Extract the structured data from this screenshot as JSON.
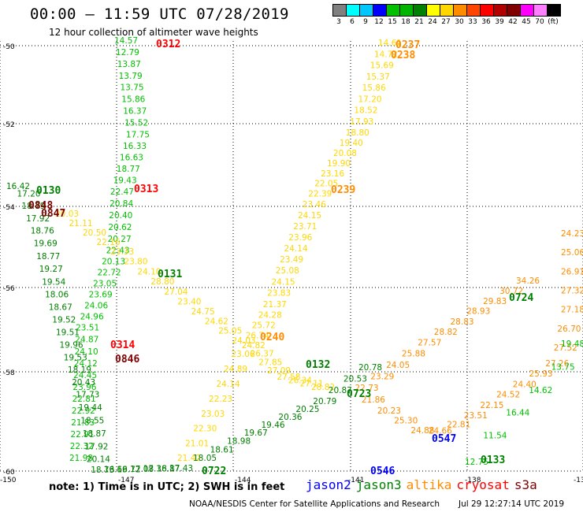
{
  "header": {
    "title": "00:00 – 11:59 UTC 07/28/2019",
    "subtitle": "12 hour collection of altimeter wave heights"
  },
  "color_scale": {
    "colors": [
      "#808080",
      "#00ffff",
      "#00c8ff",
      "#0000ff",
      "#00c000",
      "#00b400",
      "#008000",
      "#ffff00",
      "#ffd700",
      "#ff8c00",
      "#ff4500",
      "#ff0000",
      "#b00000",
      "#800000",
      "#ff00ff",
      "#ff80ff",
      "#000000"
    ],
    "labels": [
      "3",
      "6",
      "9",
      "12",
      "15",
      "18",
      "21",
      "24",
      "27",
      "30",
      "33",
      "36",
      "39",
      "42",
      "45",
      "70",
      "(ft)"
    ]
  },
  "axes": {
    "lat_labels": [
      "-50",
      "-52",
      "-54",
      "-56",
      "-58",
      "-60"
    ],
    "lon_labels": [
      "-150",
      "-147",
      "-144",
      "-141",
      "-138",
      "-13"
    ]
  },
  "passes": [
    {
      "id": "p0312",
      "time": "0312",
      "time_color": "#ff0000",
      "color": "#00c000",
      "values": [
        "14.57",
        "12.79",
        "13.87",
        "13.79",
        "13.75",
        "15.86",
        "16.37",
        "15.52",
        "17.75",
        "16.33",
        "16.63",
        "18.77",
        "19.43",
        "22.47",
        "20.84",
        "20.40",
        "20.62",
        "20.27",
        "22.43",
        "20.13",
        "22.72",
        "23.05",
        "23.69",
        "24.06",
        "24.96",
        "23.51",
        "24.87",
        "24.10",
        "24.12",
        "24.45",
        "23.96",
        "22.81",
        "22.92",
        "21.83",
        "22.91",
        "22.32",
        "21.98"
      ]
    },
    {
      "id": "p0130",
      "time": "0130",
      "time_color": "#008000",
      "color": "#008000",
      "values": [
        "16.42",
        "17.20",
        "18.79",
        "17.92",
        "18.76",
        "19.69",
        "18.77",
        "19.27",
        "19.54",
        "18.06",
        "18.67",
        "19.52",
        "19.51",
        "19.96",
        "19.53",
        "18.19",
        "20.43",
        "17.73",
        "19.44",
        "18.55",
        "18.87",
        "17.92",
        "20.14",
        "18.73",
        "16.69",
        "16.72",
        "17.08",
        "17.38",
        "16.87",
        "17.43"
      ]
    },
    {
      "id": "p0131",
      "time": "0131",
      "time_color": "#008000",
      "color": "#ffd700",
      "values": [
        "20.03",
        "21.11",
        "20.50",
        "22.16",
        "23.33",
        "23.80",
        "24.10",
        "28.80",
        "27.04",
        "23.40",
        "24.75",
        "24.62",
        "25.05",
        "24.03",
        "23.06",
        "24.89",
        "24.14",
        "22.23",
        "23.03",
        "22.30",
        "21.01",
        "21.42"
      ]
    },
    {
      "id": "p0239",
      "time": "0239",
      "time_color": "#ff8c00",
      "color": "#ffd700",
      "values": [
        "14.61",
        "14.72",
        "15.69",
        "15.37",
        "15.86",
        "17.20",
        "18.52",
        "17.93",
        "18.80",
        "19.40",
        "20.08",
        "19.90",
        "23.16",
        "22.05",
        "22.39",
        "23.46",
        "24.15",
        "23.71",
        "23.96",
        "24.14",
        "23.49",
        "25.08",
        "24.15",
        "23.83",
        "21.37",
        "24.28",
        "25.72",
        "26.74",
        "24.82",
        "26.37",
        "27.85",
        "27.09",
        "27.58",
        "26.34",
        "27.11",
        "28.82"
      ]
    },
    {
      "id": "p0722",
      "time": "0722",
      "time_color": "#008000",
      "color": "#008000",
      "values": [
        "18.05",
        "18.61",
        "18.98",
        "19.67",
        "19.46",
        "20.36",
        "20.25",
        "20.79",
        "20.87",
        "20.53",
        "20.78"
      ]
    },
    {
      "id": "p0724",
      "time": "0724",
      "time_color": "#008000",
      "color": "#ff8c00",
      "values": [
        "34.26",
        "30.72",
        "29.83",
        "28.93",
        "28.83",
        "28.82",
        "27.57",
        "25.88",
        "24.05",
        "23.29",
        "22.73",
        "21.86",
        "20.23",
        "25.30",
        "24.88",
        "24.66",
        "22.81",
        "23.51",
        "22.15",
        "24.52",
        "24.40",
        "25.93",
        "27.26",
        "27.52",
        "26.70",
        "27.18",
        "27.32",
        "26.91",
        "25.06",
        "24.23"
      ]
    },
    {
      "id": "p0133",
      "time": "0133",
      "time_color": "#008000",
      "color": "#00c000",
      "values": [
        "19.48",
        "13.75",
        "14.62",
        "16.44",
        "11.54",
        "12.75"
      ]
    }
  ],
  "labels": {
    "t0313": "0313",
    "t0314": "0314",
    "t0846": "0846",
    "t0848": "0848",
    "t0847": "0847",
    "t0240": "0240",
    "t0132": "0132",
    "t0723": "0723",
    "t0238": "0238",
    "t0237": "0237",
    "t0547": "0547",
    "t0546": "0546",
    "t0722b": "0722",
    "t0133": "0133",
    "t0724": "0724"
  },
  "note": "note:  1) Time is in UTC;  2) SWH is in feet",
  "satellites": [
    {
      "name": "jason2",
      "color": "#0000ff"
    },
    {
      "name": "jason3",
      "color": "#008000"
    },
    {
      "name": "altika",
      "color": "#ff8c00"
    },
    {
      "name": "cryosat",
      "color": "#ff0000"
    },
    {
      "name": "s3a",
      "color": "#800000"
    }
  ],
  "footer": {
    "left": "NOAA/NESDIS Center for Satellite Applications and Research",
    "right": "Jul 29 12:27:14 UTC 2019"
  }
}
